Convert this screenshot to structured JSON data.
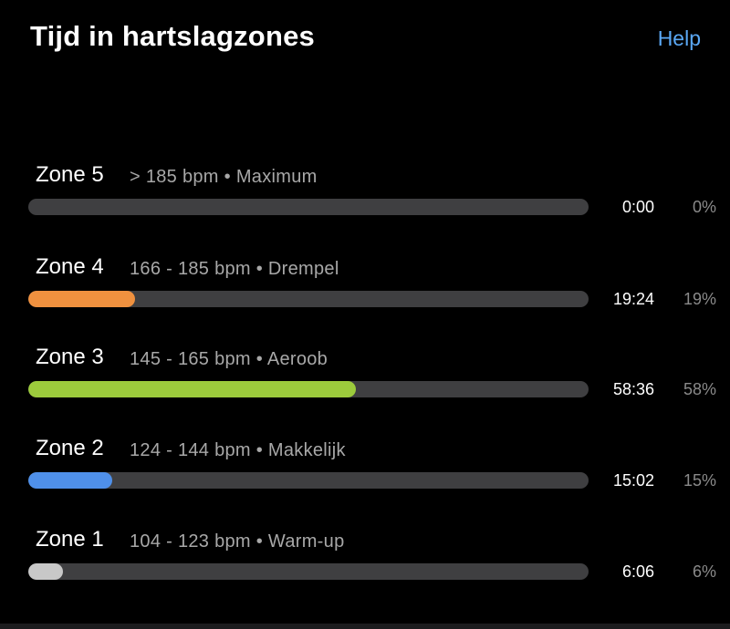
{
  "header": {
    "title": "Tijd in hartslagzones",
    "help_label": "Help"
  },
  "zones": [
    {
      "name": "Zone 5",
      "range": "> 185 bpm",
      "separator": "•",
      "label": "Maximum",
      "time": "0:00",
      "percent": "0%",
      "fraction": 0.0,
      "color": "#3f3f41"
    },
    {
      "name": "Zone 4",
      "range": "166 - 185 bpm",
      "separator": "•",
      "label": "Drempel",
      "time": "19:24",
      "percent": "19%",
      "fraction": 0.19,
      "color": "#f0913f"
    },
    {
      "name": "Zone 3",
      "range": "145 - 165 bpm",
      "separator": "•",
      "label": "Aeroob",
      "time": "58:36",
      "percent": "58%",
      "fraction": 0.585,
      "color": "#9ccb3c"
    },
    {
      "name": "Zone 2",
      "range": "124 - 144 bpm",
      "separator": "•",
      "label": "Makkelijk",
      "time": "15:02",
      "percent": "15%",
      "fraction": 0.15,
      "color": "#4f90ea"
    },
    {
      "name": "Zone 1",
      "range": "104 - 123 bpm",
      "separator": "•",
      "label": "Warm-up",
      "time": "6:06",
      "percent": "6%",
      "fraction": 0.062,
      "color": "#c8c8c8"
    }
  ],
  "colors": {
    "background": "#000000",
    "track": "#3f3f41",
    "accent": "#5aa8f5"
  }
}
